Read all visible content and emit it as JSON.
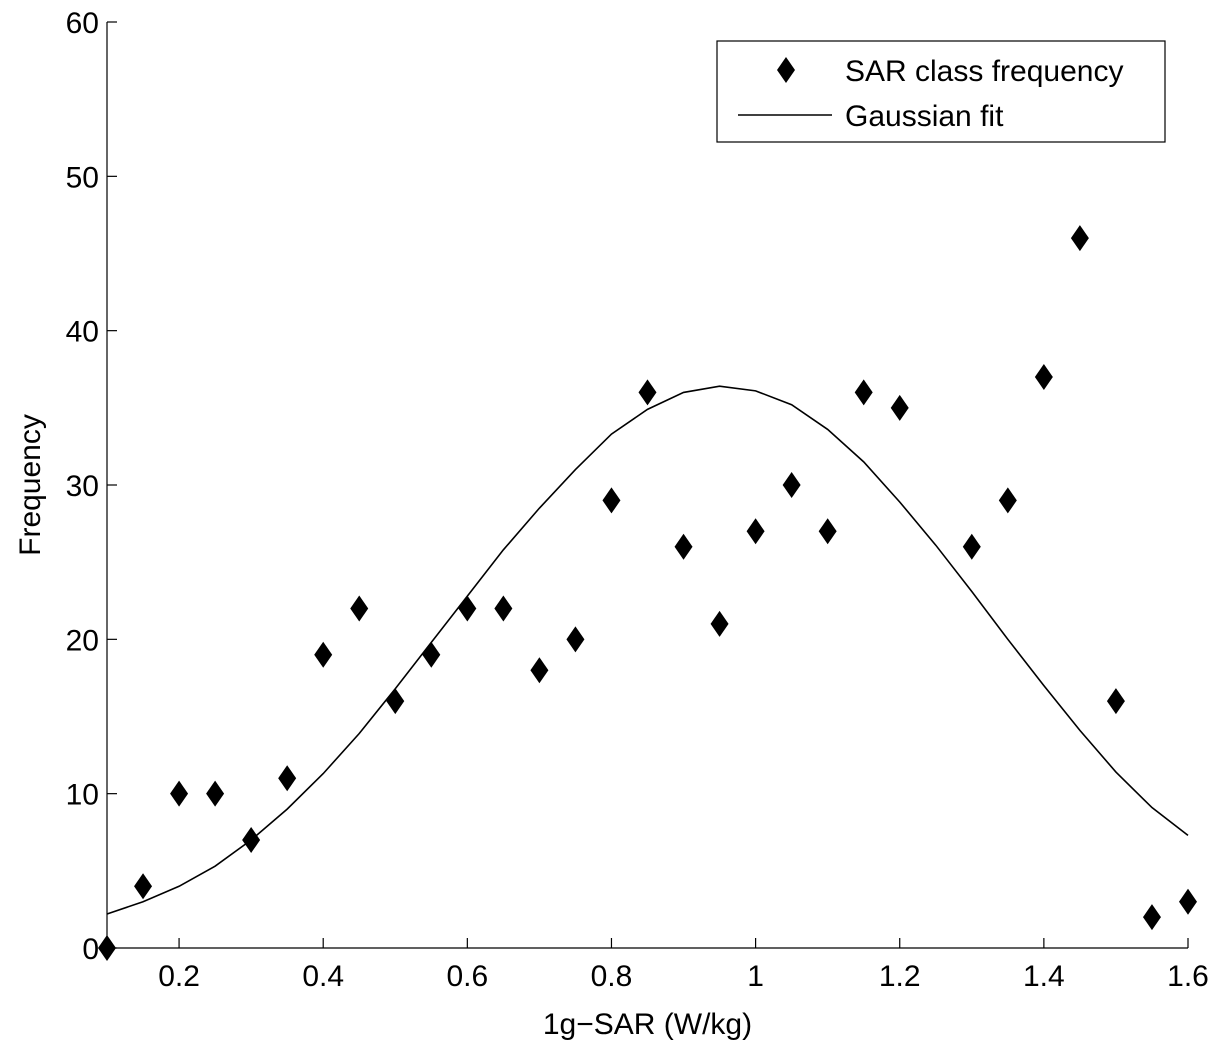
{
  "chart_data": {
    "type": "scatter",
    "xlabel": "1g−SAR (W/kg)",
    "ylabel": "Frequency",
    "xlim": [
      0.1,
      1.6
    ],
    "ylim": [
      0,
      60
    ],
    "xticks": [
      0.2,
      0.4,
      0.6,
      0.8,
      1.0,
      1.2,
      1.4,
      1.6
    ],
    "xtick_labels": [
      "0.2",
      "0.4",
      "0.6",
      "0.8",
      "1",
      "1.2",
      "1.4",
      "1.6"
    ],
    "yticks": [
      0,
      10,
      20,
      30,
      40,
      50,
      60
    ],
    "ytick_labels": [
      "0",
      "10",
      "20",
      "30",
      "40",
      "50",
      "60"
    ],
    "grid": false,
    "legend": {
      "position": "top-right"
    },
    "series": [
      {
        "name": "SAR class frequency",
        "kind": "markers",
        "marker": "diamond",
        "color": "#000000",
        "x": [
          0.1,
          0.15,
          0.2,
          0.25,
          0.3,
          0.35,
          0.4,
          0.45,
          0.5,
          0.55,
          0.6,
          0.65,
          0.7,
          0.75,
          0.8,
          0.85,
          0.9,
          0.95,
          1.0,
          1.05,
          1.1,
          1.15,
          1.2,
          1.3,
          1.35,
          1.4,
          1.45,
          1.5,
          1.55,
          1.6
        ],
        "y": [
          0,
          4,
          10,
          10,
          7,
          11,
          19,
          22,
          16,
          19,
          22,
          22,
          18,
          20,
          29,
          36,
          26,
          21,
          27,
          30,
          27,
          36,
          35,
          26,
          29,
          37,
          46,
          16,
          2,
          3
        ]
      },
      {
        "name": "Gaussian fit",
        "kind": "line",
        "color": "#000000",
        "x": [
          0.1,
          0.15,
          0.2,
          0.25,
          0.3,
          0.35,
          0.4,
          0.45,
          0.5,
          0.55,
          0.6,
          0.65,
          0.7,
          0.75,
          0.8,
          0.85,
          0.9,
          0.95,
          1.0,
          1.05,
          1.1,
          1.15,
          1.2,
          1.25,
          1.3,
          1.35,
          1.4,
          1.45,
          1.5,
          1.55,
          1.6
        ],
        "y": [
          2.2,
          3.0,
          4.0,
          5.3,
          7.0,
          9.0,
          11.3,
          13.9,
          16.8,
          19.8,
          22.8,
          25.8,
          28.5,
          31.0,
          33.3,
          34.9,
          36.0,
          36.4,
          36.1,
          35.2,
          33.6,
          31.5,
          28.9,
          26.1,
          23.1,
          20.0,
          17.0,
          14.1,
          11.4,
          9.1,
          7.3
        ]
      }
    ]
  }
}
